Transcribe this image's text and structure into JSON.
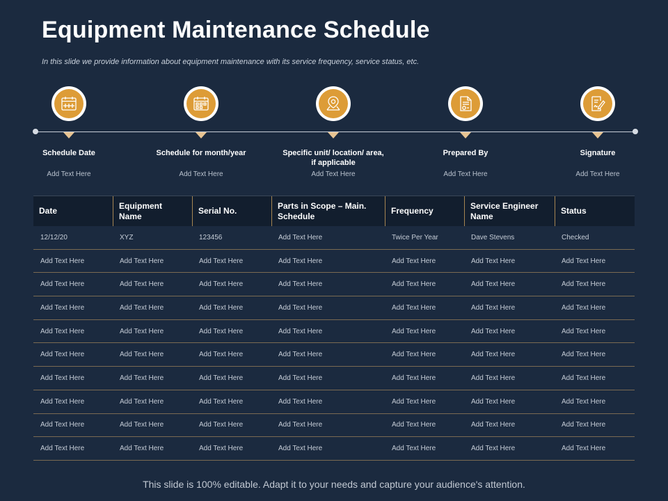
{
  "header": {
    "title": "Equipment Maintenance Schedule",
    "subtitle": "In this slide we provide information about equipment maintenance with its service frequency, service status, etc."
  },
  "timeline": {
    "steps": [
      {
        "label": "Schedule Date",
        "sub": "Add Text Here",
        "icon": "calendar-icon"
      },
      {
        "label": "Schedule for month/year",
        "sub": "Add Text Here",
        "icon": "calendar-grid-icon"
      },
      {
        "label": "Specific unit/ location/ area, if applicable",
        "sub": "Add Text Here",
        "icon": "location-pin-icon"
      },
      {
        "label": "Prepared By",
        "sub": "Add Text Here",
        "icon": "document-icon"
      },
      {
        "label": "Signature",
        "sub": "Add Text Here",
        "icon": "signature-icon"
      }
    ]
  },
  "table": {
    "headers": [
      "Date",
      "Equipment Name",
      "Serial No.",
      "Parts in Scope – Main. Schedule",
      "Frequency",
      "Service Engineer Name",
      "Status"
    ],
    "rows": [
      [
        "12/12/20",
        "XYZ",
        "123456",
        "Add Text Here",
        "Twice Per Year",
        "Dave Stevens",
        "Checked"
      ],
      [
        "Add Text Here",
        "Add Text Here",
        "Add Text Here",
        "Add Text Here",
        "Add Text Here",
        "Add Text Here",
        "Add Text Here"
      ],
      [
        "Add Text Here",
        "Add Text Here",
        "Add Text Here",
        "Add Text Here",
        "Add Text Here",
        "Add Text Here",
        "Add Text Here"
      ],
      [
        "Add Text Here",
        "Add Text Here",
        "Add Text Here",
        "Add Text Here",
        "Add Text Here",
        "Add Text Here",
        "Add Text Here"
      ],
      [
        "Add Text Here",
        "Add Text Here",
        "Add Text Here",
        "Add Text Here",
        "Add Text Here",
        "Add Text Here",
        "Add Text Here"
      ],
      [
        "Add Text Here",
        "Add Text Here",
        "Add Text Here",
        "Add Text Here",
        "Add Text Here",
        "Add Text Here",
        "Add Text Here"
      ],
      [
        "Add Text Here",
        "Add Text Here",
        "Add Text Here",
        "Add Text Here",
        "Add Text Here",
        "Add Text Here",
        "Add Text Here"
      ],
      [
        "Add Text Here",
        "Add Text Here",
        "Add Text Here",
        "Add Text Here",
        "Add Text Here",
        "Add Text Here",
        "Add Text Here"
      ],
      [
        "Add Text Here",
        "Add Text Here",
        "Add Text Here",
        "Add Text Here",
        "Add Text Here",
        "Add Text Here",
        "Add Text Here"
      ],
      [
        "Add Text Here",
        "Add Text Here",
        "Add Text Here",
        "Add Text Here",
        "Add Text Here",
        "Add Text Here",
        "Add Text Here"
      ]
    ]
  },
  "footer": {
    "text": "This slide is 100% editable. Adapt it to your needs and capture your audience's attention."
  },
  "colors": {
    "background": "#1b2a3f",
    "accent": "#dd9c37",
    "header_row": "#121e2e",
    "divider": "#7a6a52"
  }
}
